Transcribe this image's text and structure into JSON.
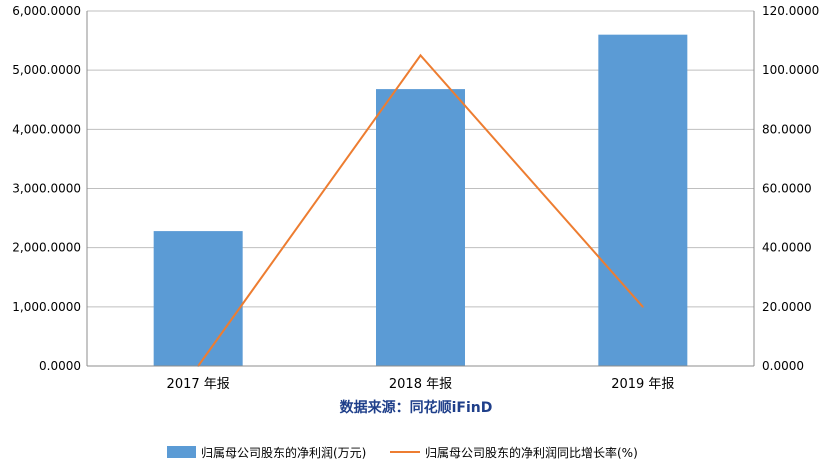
{
  "chart_data": {
    "type": "bar",
    "categories": [
      "2017 年报",
      "2018 年报",
      "2019 年报"
    ],
    "series": [
      {
        "name": "归属母公司股东的净利润(万元)",
        "type": "bar",
        "axis": "left",
        "color": "#5b9bd5",
        "values": [
          2280,
          4680,
          5600
        ]
      },
      {
        "name": "归属母公司股东的净利润同比增长率(%)",
        "type": "line",
        "axis": "right",
        "color": "#ed7d31",
        "values": [
          0,
          105,
          20
        ]
      }
    ],
    "y_left": {
      "min": 0,
      "max": 6000,
      "ticks": [
        "0.0000",
        "1,000.0000",
        "2,000.0000",
        "3,000.0000",
        "4,000.0000",
        "5,000.0000",
        "6,000.0000"
      ]
    },
    "y_right": {
      "min": 0,
      "max": 120,
      "ticks": [
        "0.0000",
        "20.0000",
        "40.0000",
        "60.0000",
        "80.0000",
        "100.0000",
        "120.0000"
      ]
    },
    "grid": true,
    "legend_position": "bottom",
    "source_note": "数据来源：同花顺iFinD"
  }
}
